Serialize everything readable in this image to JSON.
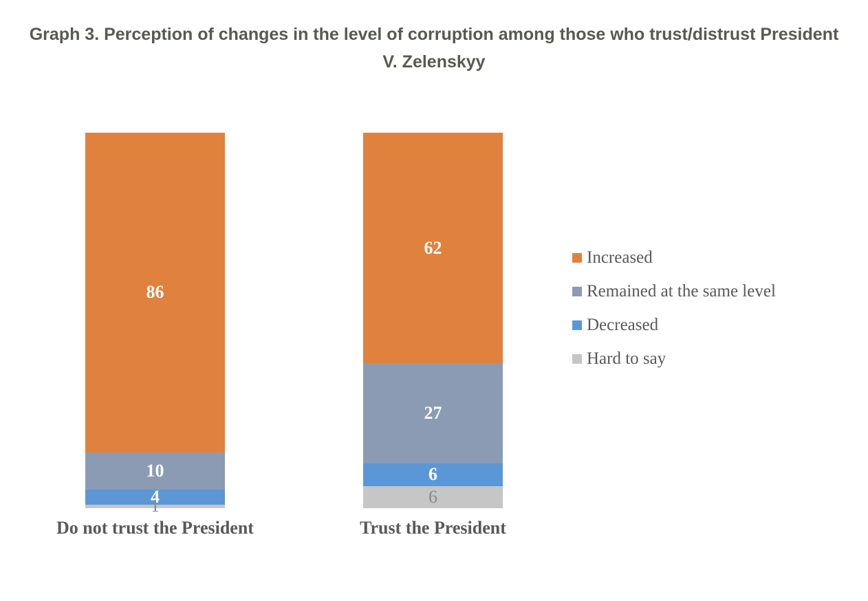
{
  "page": {
    "background": "#FFFFFF"
  },
  "chart_data": {
    "type": "bar",
    "stacked": true,
    "orientation": "vertical",
    "title": "Graph 3. Perception of changes in the level of corruption among those who trust/distrust President V. Zelenskyy",
    "title_color": "#575A50",
    "categories": [
      "Do not trust the President",
      "Trust the President"
    ],
    "series": [
      {
        "name": "Increased",
        "color": "#E0813E",
        "label_color": "#FFFFFF",
        "label_bold": true,
        "values": [
          86,
          62
        ]
      },
      {
        "name": "Remained at the same level",
        "color": "#8B9BB4",
        "label_color": "#FFFFFF",
        "label_bold": true,
        "values": [
          10,
          27
        ]
      },
      {
        "name": "Decreased",
        "color": "#5B97D6",
        "label_color": "#FFFFFF",
        "label_bold": true,
        "values": [
          4,
          6
        ]
      },
      {
        "name": "Hard to say",
        "color": "#C6C6C6",
        "label_color": "#8A8A8A",
        "label_bold": false,
        "values": [
          1,
          6
        ]
      }
    ],
    "data_labels": true,
    "axis_text_color": "#595959",
    "legend_position": "right",
    "legend_text_color": "#595959",
    "grid": false,
    "axes_visible": false,
    "value_scale": "percent",
    "stack_totals": [
      101,
      101
    ]
  }
}
